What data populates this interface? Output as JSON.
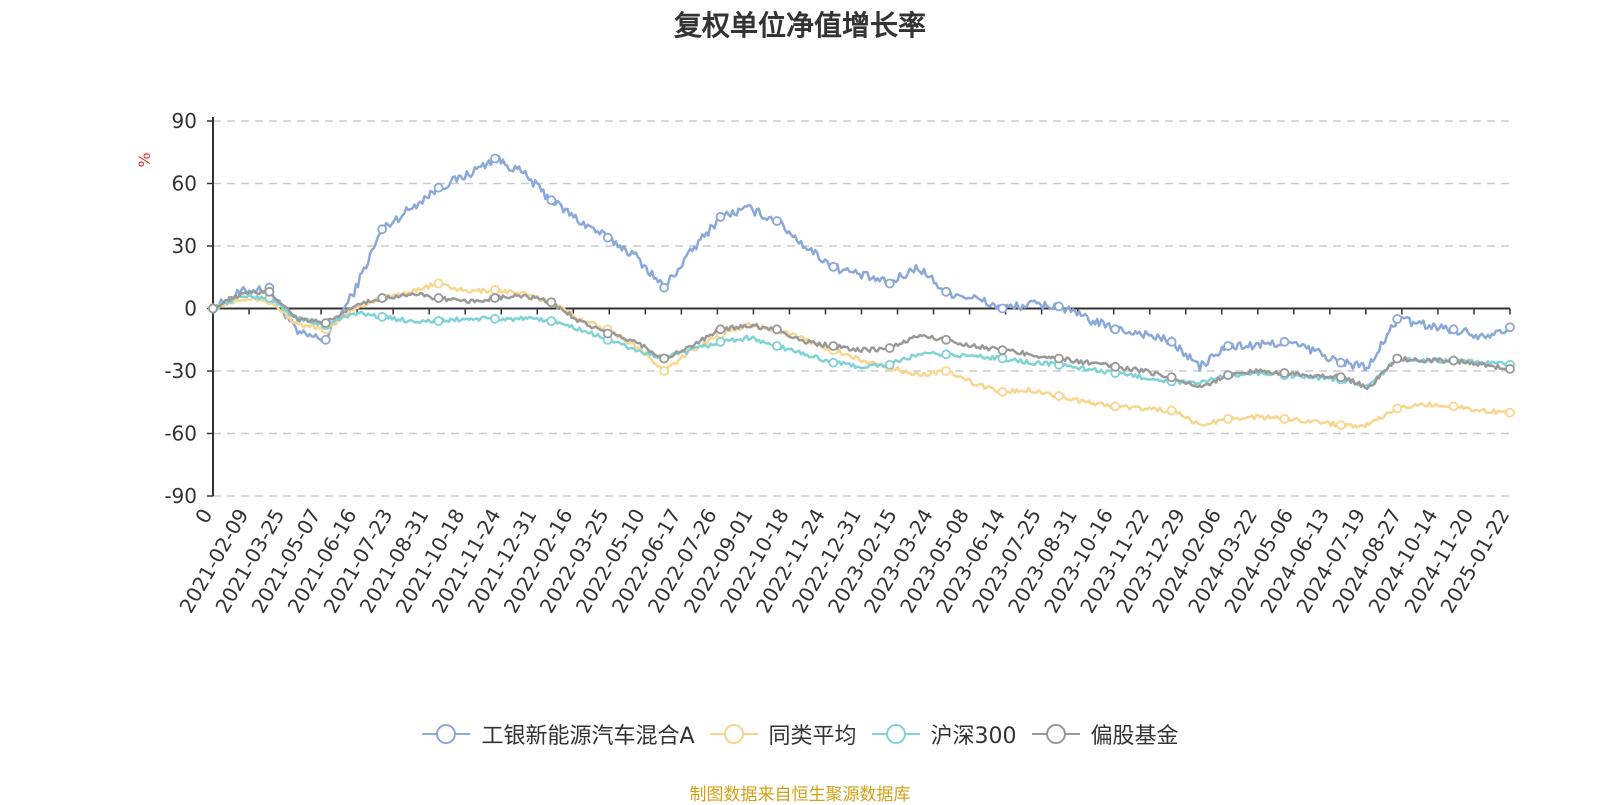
{
  "chart_data": {
    "type": "line",
    "title": "复权单位净值增长率",
    "ylabel": "%",
    "ylim": [
      -90,
      90
    ],
    "y_ticks": [
      -90,
      -60,
      -30,
      0,
      30,
      60,
      90
    ],
    "grid": true,
    "legend_position": "bottom",
    "x_ticks": [
      "0",
      "2021-02-09",
      "2021-03-25",
      "2021-05-07",
      "2021-06-16",
      "2021-07-23",
      "2021-08-31",
      "2021-10-18",
      "2021-11-24",
      "2021-12-31",
      "2022-02-16",
      "2022-03-25",
      "2022-05-10",
      "2022-06-17",
      "2022-07-26",
      "2022-09-01",
      "2022-10-18",
      "2022-11-24",
      "2022-12-31",
      "2023-02-15",
      "2023-03-24",
      "2023-05-08",
      "2023-06-14",
      "2023-07-25",
      "2023-08-31",
      "2023-10-16",
      "2023-11-22",
      "2023-12-29",
      "2024-02-06",
      "2024-03-22",
      "2024-05-06",
      "2024-06-13",
      "2024-07-19",
      "2024-08-27",
      "2024-10-14",
      "2024-11-20",
      "2025-01-22"
    ],
    "series": [
      {
        "name": "工银新能源汽车混合A",
        "color": "#8ba9d8",
        "values": [
          0,
          8,
          10,
          -12,
          -15,
          8,
          38,
          48,
          58,
          64,
          72,
          65,
          52,
          42,
          34,
          25,
          10,
          28,
          44,
          48,
          42,
          30,
          20,
          16,
          12,
          20,
          8,
          5,
          0,
          2,
          1,
          -5,
          -10,
          -12,
          -16,
          -28,
          -18,
          -18,
          -16,
          -20,
          -26,
          -28,
          -5,
          -8,
          -10,
          -13,
          -9
        ]
      },
      {
        "name": "同类平均",
        "color": "#f8d68e",
        "values": [
          0,
          5,
          4,
          -8,
          -10,
          0,
          5,
          8,
          12,
          8,
          9,
          7,
          3,
          -5,
          -10,
          -18,
          -30,
          -20,
          -12,
          -8,
          -10,
          -15,
          -20,
          -25,
          -28,
          -32,
          -30,
          -36,
          -40,
          -39,
          -42,
          -45,
          -47,
          -48,
          -49,
          -56,
          -53,
          -52,
          -53,
          -54,
          -56,
          -56,
          -48,
          -46,
          -47,
          -49,
          -50
        ]
      },
      {
        "name": "沪深300",
        "color": "#7fd3d6",
        "values": [
          0,
          6,
          5,
          -5,
          -8,
          -2,
          -4,
          -6,
          -6,
          -5,
          -5,
          -5,
          -6,
          -10,
          -15,
          -20,
          -24,
          -20,
          -16,
          -14,
          -18,
          -22,
          -26,
          -28,
          -27,
          -22,
          -22,
          -23,
          -24,
          -26,
          -27,
          -29,
          -31,
          -33,
          -35,
          -36,
          -32,
          -31,
          -32,
          -33,
          -34,
          -37,
          -24,
          -25,
          -25,
          -26,
          -27
        ]
      },
      {
        "name": "偏股基金",
        "color": "#999999",
        "values": [
          0,
          7,
          8,
          -5,
          -7,
          1,
          5,
          7,
          5,
          3,
          5,
          6,
          3,
          -6,
          -12,
          -16,
          -24,
          -18,
          -10,
          -8,
          -10,
          -16,
          -18,
          -20,
          -19,
          -13,
          -15,
          -18,
          -20,
          -22,
          -24,
          -26,
          -28,
          -30,
          -33,
          -38,
          -32,
          -30,
          -31,
          -32,
          -33,
          -38,
          -24,
          -25,
          -25,
          -27,
          -29
        ]
      }
    ]
  },
  "source_note": "制图数据来自恒生聚源数据库"
}
